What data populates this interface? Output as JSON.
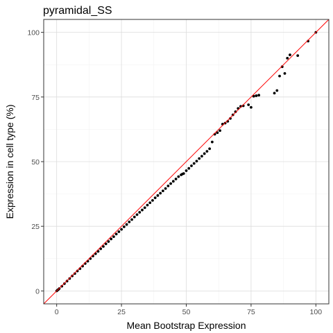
{
  "chart_data": {
    "type": "scatter",
    "title": "pyramidal_SS",
    "xlabel": "Mean Bootstrap Expression",
    "ylabel": "Expression in cell type (%)",
    "xlim": [
      -5,
      105
    ],
    "ylim": [
      -5,
      105
    ],
    "x_ticks": [
      0,
      25,
      50,
      75,
      100
    ],
    "y_ticks": [
      0,
      25,
      50,
      75,
      100
    ],
    "grid": true,
    "legend": "none",
    "reference_line": {
      "type": "identity",
      "slope": 1,
      "intercept": 0,
      "color": "#ff0000"
    },
    "point_color": "#000000",
    "series": [
      {
        "x": [
          0,
          0.3,
          0.6,
          1,
          2,
          3,
          4,
          5,
          6,
          7,
          8,
          9,
          10,
          11,
          12,
          13,
          14,
          15,
          16,
          17,
          18,
          19,
          20,
          21,
          22,
          23,
          24,
          25,
          26,
          27,
          28,
          29,
          30,
          31,
          32,
          33,
          34,
          35,
          36,
          37,
          38,
          39,
          40,
          41,
          42,
          43,
          44,
          45,
          46,
          47,
          48,
          48.5,
          49,
          50,
          51,
          52,
          53,
          54,
          55,
          56,
          57,
          58,
          59,
          60,
          61,
          62,
          63,
          64,
          65,
          66,
          67,
          68,
          69,
          70,
          71,
          72,
          74,
          75,
          76,
          77,
          78,
          84,
          85,
          86,
          87,
          88,
          89,
          90,
          93,
          97,
          100
        ],
        "y": [
          0,
          0.3,
          0.5,
          0.9,
          1.8,
          2.8,
          3.8,
          4.8,
          5.8,
          6.7,
          7.7,
          8.6,
          9.6,
          10.6,
          11.5,
          12.5,
          13.5,
          14.4,
          15.3,
          16.3,
          17.2,
          18.2,
          19.1,
          20.1,
          21.0,
          22.0,
          22.9,
          23.8,
          24.8,
          25.7,
          26.7,
          27.6,
          28.6,
          29.5,
          30.4,
          31.3,
          32.2,
          33.2,
          34.1,
          35.0,
          36.0,
          36.9,
          37.8,
          38.7,
          39.6,
          40.6,
          41.5,
          42.4,
          43.3,
          44.2,
          44.9,
          45.2,
          45.4,
          46.5,
          47.4,
          48.4,
          49.3,
          50.2,
          51.2,
          52.1,
          53.1,
          54.0,
          55.0,
          57.6,
          60.6,
          61.2,
          62.0,
          64.5,
          64.9,
          65.6,
          66.7,
          68.1,
          69.3,
          70.6,
          71.4,
          71.6,
          72.0,
          71.0,
          75.3,
          75.5,
          75.7,
          76.5,
          77.5,
          83.1,
          86.7,
          84.1,
          90.0,
          91.3,
          91.0,
          96.6,
          100
        ]
      }
    ]
  }
}
